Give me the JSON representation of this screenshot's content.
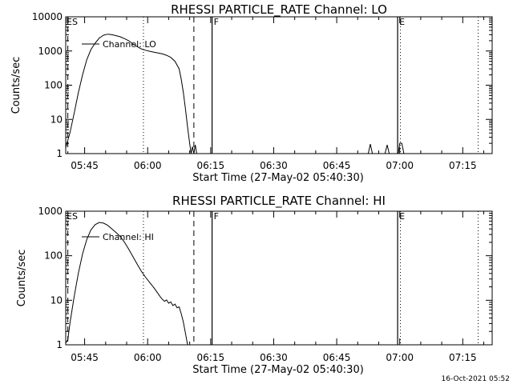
{
  "footer_text": "16-Oct-2021 05:52",
  "chart_data": [
    {
      "type": "line",
      "title": "RHESSI PARTICLE_RATE Channel: LO",
      "xlabel": "Start Time (27-May-02 05:40:30)",
      "ylabel": "Counts/sec",
      "y_scale": "log",
      "ylim": [
        1,
        10000
      ],
      "xlim": [
        "05:40:30",
        "07:22:00"
      ],
      "x_ticks": [
        "05:45",
        "06:00",
        "06:15",
        "06:30",
        "06:45",
        "07:00",
        "07:15"
      ],
      "y_ticks": [
        "1",
        "10",
        "100",
        "1000",
        "10000"
      ],
      "legend": {
        "label": "Channel: LO",
        "position": "top-left"
      },
      "markers": [
        {
          "time": "05:41:00",
          "style": "dashed"
        },
        {
          "time": "05:59:00",
          "style": "dotted"
        },
        {
          "time": "06:11:00",
          "style": "dashed"
        },
        {
          "time": "06:15:20",
          "style": "solid",
          "label": "F"
        },
        {
          "time": "06:59:30",
          "style": "solid",
          "label": "E"
        },
        {
          "time": "07:00:10",
          "style": "dotted"
        },
        {
          "time": "07:18:40",
          "style": "dotted"
        }
      ],
      "corner_label": "ES",
      "series": [
        {
          "points": [
            [
              "05:40:30",
              1.5
            ],
            [
              "05:41:30",
              4
            ],
            [
              "05:42:30",
              15
            ],
            [
              "05:43:30",
              60
            ],
            [
              "05:44:30",
              200
            ],
            [
              "05:45:30",
              550
            ],
            [
              "05:46:30",
              1100
            ],
            [
              "05:47:30",
              1700
            ],
            [
              "05:48:30",
              2400
            ],
            [
              "05:49:30",
              2900
            ],
            [
              "05:50:30",
              3100
            ],
            [
              "05:51:30",
              3000
            ],
            [
              "05:52:30",
              2800
            ],
            [
              "05:53:30",
              2600
            ],
            [
              "05:54:30",
              2300
            ],
            [
              "05:55:30",
              2000
            ],
            [
              "05:56:30",
              1600
            ],
            [
              "05:57:30",
              1350
            ],
            [
              "05:58:30",
              1150
            ],
            [
              "05:59:30",
              1050
            ],
            [
              "06:00:30",
              980
            ],
            [
              "06:01:30",
              920
            ],
            [
              "06:02:30",
              870
            ],
            [
              "06:03:30",
              820
            ],
            [
              "06:04:30",
              750
            ],
            [
              "06:05:30",
              650
            ],
            [
              "06:06:30",
              500
            ],
            [
              "06:07:30",
              300
            ],
            [
              "06:08:00",
              150
            ],
            [
              "06:08:30",
              60
            ],
            [
              "06:09:00",
              20
            ],
            [
              "06:09:30",
              6
            ],
            [
              "06:10:00",
              2
            ],
            [
              "06:10:20",
              1
            ],
            [
              "06:10:40",
              1.6
            ],
            [
              "06:11:00",
              1
            ],
            [
              "06:11:20",
              1.8
            ],
            [
              "06:11:40",
              1
            ]
          ]
        },
        {
          "points": [
            [
              "06:52:30",
              1
            ],
            [
              "06:53:00",
              1.9
            ],
            [
              "06:53:30",
              1
            ]
          ]
        },
        {
          "points": [
            [
              "06:56:30",
              1
            ],
            [
              "06:57:00",
              1.8
            ],
            [
              "06:57:30",
              1
            ]
          ]
        },
        {
          "points": [
            [
              "06:59:40",
              1
            ],
            [
              "07:00:00",
              2
            ],
            [
              "07:00:30",
              2
            ],
            [
              "07:01:00",
              1
            ]
          ]
        }
      ]
    },
    {
      "type": "line",
      "title": "RHESSI PARTICLE_RATE Channel: HI",
      "xlabel": "Start Time (27-May-02 05:40:30)",
      "ylabel": "Counts/sec",
      "y_scale": "log",
      "ylim": [
        1,
        1000
      ],
      "xlim": [
        "05:40:30",
        "07:22:00"
      ],
      "x_ticks": [
        "05:45",
        "06:00",
        "06:15",
        "06:30",
        "06:45",
        "07:00",
        "07:15"
      ],
      "y_ticks": [
        "1",
        "10",
        "100",
        "1000"
      ],
      "legend": {
        "label": "Channel: HI",
        "position": "top-left"
      },
      "markers": [
        {
          "time": "05:41:00",
          "style": "dashed"
        },
        {
          "time": "05:59:00",
          "style": "dotted"
        },
        {
          "time": "06:11:00",
          "style": "dashed"
        },
        {
          "time": "06:15:20",
          "style": "solid",
          "label": "F"
        },
        {
          "time": "06:59:30",
          "style": "solid",
          "label": "E"
        },
        {
          "time": "07:00:10",
          "style": "dotted"
        },
        {
          "time": "07:18:40",
          "style": "dotted"
        }
      ],
      "corner_label": "ES",
      "series": [
        {
          "points": [
            [
              "05:40:30",
              1.1
            ],
            [
              "05:41:00",
              1.3
            ],
            [
              "05:41:30",
              3
            ],
            [
              "05:42:30",
              12
            ],
            [
              "05:43:30",
              40
            ],
            [
              "05:44:30",
              110
            ],
            [
              "05:45:30",
              230
            ],
            [
              "05:46:30",
              380
            ],
            [
              "05:47:30",
              500
            ],
            [
              "05:48:30",
              560
            ],
            [
              "05:49:30",
              540
            ],
            [
              "05:50:30",
              480
            ],
            [
              "05:51:30",
              400
            ],
            [
              "05:52:30",
              330
            ],
            [
              "05:53:30",
              270
            ],
            [
              "05:54:30",
              200
            ],
            [
              "05:55:30",
              140
            ],
            [
              "05:56:30",
              95
            ],
            [
              "05:57:30",
              65
            ],
            [
              "05:58:30",
              45
            ],
            [
              "05:59:30",
              33
            ],
            [
              "06:00:30",
              25
            ],
            [
              "06:01:30",
              19
            ],
            [
              "06:02:30",
              14
            ],
            [
              "06:03:00",
              12
            ],
            [
              "06:03:30",
              10.5
            ],
            [
              "06:04:00",
              9.5
            ],
            [
              "06:04:30",
              10.2
            ],
            [
              "06:05:00",
              8.6
            ],
            [
              "06:05:30",
              9.2
            ],
            [
              "06:06:00",
              7.6
            ],
            [
              "06:06:30",
              8.2
            ],
            [
              "06:07:00",
              6.8
            ],
            [
              "06:07:30",
              7.1
            ],
            [
              "06:08:00",
              5
            ],
            [
              "06:08:30",
              3.2
            ],
            [
              "06:09:00",
              1.8
            ],
            [
              "06:09:30",
              1
            ]
          ]
        }
      ]
    }
  ]
}
